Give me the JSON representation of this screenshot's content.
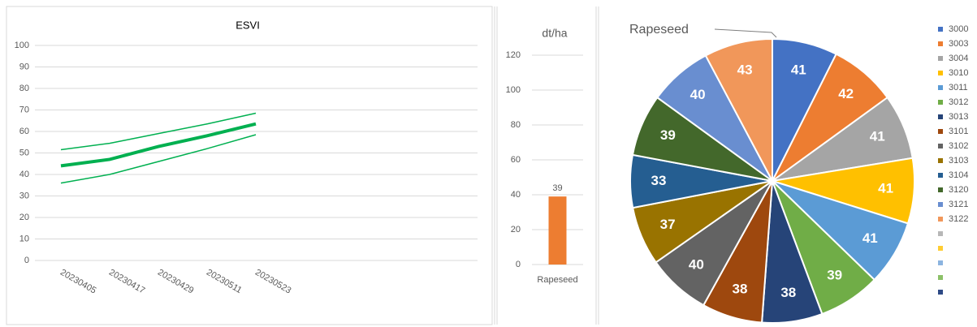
{
  "chart_data": [
    {
      "type": "line",
      "title": "ESVI",
      "categories": [
        "20230405",
        "20230417",
        "20230429",
        "20230511",
        "20230523"
      ],
      "series": [
        {
          "color": "#00b050",
          "values": [
            51.5,
            54.5,
            59,
            63.5,
            68.5
          ]
        },
        {
          "color": "#00b050",
          "values": [
            44,
            47,
            53,
            58,
            63.5
          ]
        },
        {
          "color": "#00b050",
          "values": [
            36,
            40,
            46,
            52,
            58.5
          ]
        }
      ],
      "ylim": [
        0,
        100
      ],
      "yticks": [
        0,
        10,
        20,
        30,
        40,
        50,
        60,
        70,
        80,
        90,
        100
      ],
      "grid": true
    },
    {
      "type": "bar",
      "title": "dt/ha",
      "categories": [
        "Rapeseed"
      ],
      "values": [
        39
      ],
      "color": "#ed7d31",
      "ylim": [
        0,
        120
      ],
      "yticks": [
        0,
        20,
        40,
        60,
        80,
        100,
        120
      ],
      "grid": true
    },
    {
      "type": "pie",
      "title": "Rapeseed",
      "categories": [
        "3000",
        "3003",
        "3004",
        "3010",
        "3011",
        "3012",
        "3013",
        "3101",
        "3102",
        "3103",
        "3104",
        "3120",
        "3121",
        "3122",
        null,
        null,
        null,
        null,
        null
      ],
      "values": [
        41,
        42,
        41,
        41,
        41,
        39,
        38,
        38,
        40,
        37,
        33,
        39,
        40,
        43,
        null,
        null,
        null,
        null,
        null
      ],
      "colors": [
        "#4472c4",
        "#ed7d31",
        "#a5a5a5",
        "#ffc000",
        "#5b9bd5",
        "#70ad47",
        "#264478",
        "#9e480e",
        "#636363",
        "#997300",
        "#255e91",
        "#43682b",
        "#698ed0",
        "#f1975a",
        "#b7b7b7",
        "#ffcd33",
        "#8cb4e0",
        "#8cc168",
        "#2e4a86"
      ],
      "legend": "right"
    }
  ]
}
